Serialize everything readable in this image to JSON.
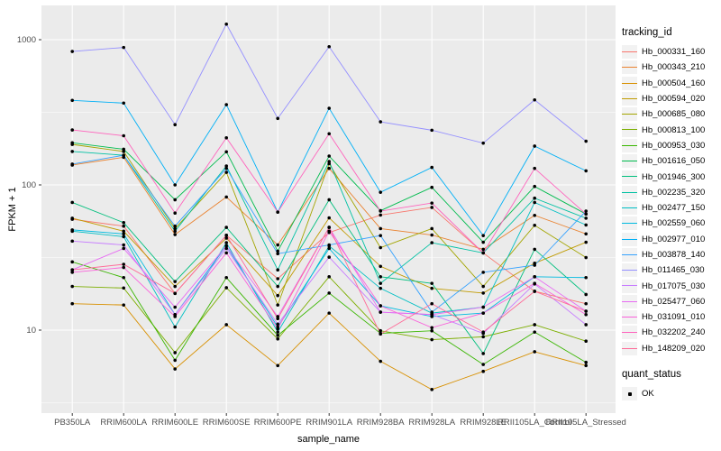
{
  "chart_data": {
    "type": "line",
    "xlabel": "sample_name",
    "ylabel": "FPKM + 1",
    "y_scale": "log10",
    "y_ticks": [
      10,
      100,
      1000
    ],
    "y_minor_ticks": [
      3.162,
      31.62,
      316.2
    ],
    "ylim_log10": [
      0.43,
      3.24
    ],
    "grid": true,
    "legend_position": "right",
    "point_color": "#000000",
    "categories": [
      "PB350LA",
      "RRIM600LA",
      "RRIM600LE",
      "RRIM600SE",
      "RRIM600PE",
      "RRIM901LA",
      "RRIM928BA",
      "RRIM928LA",
      "RRIM928LE",
      "RRII105LA_Control",
      "RRII105LA_Stressed"
    ],
    "series": [
      {
        "name": "Hb_000331_160",
        "color": "#F8766D",
        "values": [
          58,
          52,
          17.9,
          45,
          22.6,
          47,
          62,
          70,
          34,
          18.5,
          15.2
        ]
      },
      {
        "name": "Hb_000343_210",
        "color": "#EA8331",
        "values": [
          137,
          155,
          45.5,
          82.6,
          38.6,
          130,
          50,
          45.2,
          36,
          61.7,
          46
        ]
      },
      {
        "name": "Hb_000504_160",
        "color": "#D89000",
        "values": [
          15.2,
          14.9,
          5.4,
          10.9,
          5.7,
          13.1,
          6.1,
          3.9,
          5.2,
          7.1,
          5.7
        ]
      },
      {
        "name": "Hb_000594_020",
        "color": "#C09B00",
        "values": [
          59,
          48,
          20,
          43,
          17.3,
          59.3,
          27.5,
          19.4,
          18,
          28.9,
          40.3
        ]
      },
      {
        "name": "Hb_000685_080",
        "color": "#A3A500",
        "values": [
          190,
          170,
          50,
          122,
          14.9,
          140,
          37,
          50,
          20,
          52.7,
          31.6
        ]
      },
      {
        "name": "Hb_000813_100",
        "color": "#7CAE00",
        "values": [
          20,
          19.5,
          7.0,
          19.6,
          8.7,
          23.3,
          9.9,
          8.6,
          9.0,
          10.9,
          8.4
        ]
      },
      {
        "name": "Hb_000953_030",
        "color": "#39B600",
        "values": [
          29.5,
          23,
          6.2,
          23,
          9.2,
          18,
          9.5,
          9.9,
          5.8,
          9.7,
          6.0
        ]
      },
      {
        "name": "Hb_001616_050",
        "color": "#00BB4E",
        "values": [
          195,
          176,
          79,
          169,
          35,
          158,
          66.5,
          96.2,
          40.3,
          97.6,
          63
        ]
      },
      {
        "name": "Hb_001946_300",
        "color": "#00BF7D",
        "values": [
          75.7,
          55,
          21.6,
          51,
          20,
          79,
          23.3,
          21,
          6.9,
          36,
          17.6
        ]
      },
      {
        "name": "Hb_002235_320",
        "color": "#00C1A3",
        "values": [
          170,
          160,
          48,
          135,
          26,
          145,
          21,
          40,
          34,
          81,
          59
        ]
      },
      {
        "name": "Hb_002477_150",
        "color": "#00BFC4",
        "values": [
          48,
          44,
          10.5,
          40,
          9.7,
          38,
          19.4,
          13.1,
          14.4,
          75.7,
          53
        ]
      },
      {
        "name": "Hb_002559_060",
        "color": "#00BAE0",
        "values": [
          49,
          46,
          12.8,
          38,
          10.5,
          36.5,
          14.7,
          12.4,
          13.1,
          23.3,
          23
        ]
      },
      {
        "name": "Hb_002977_010",
        "color": "#00B0F6",
        "values": [
          382,
          366,
          100,
          357,
          65,
          337,
          89,
          132,
          44.8,
          185,
          125
        ]
      },
      {
        "name": "Hb_003878_140",
        "color": "#35A2FF",
        "values": [
          139,
          160,
          52,
          130,
          33.6,
          38.6,
          44.8,
          13.3,
          25,
          28,
          66
        ]
      },
      {
        "name": "Hb_011465_030",
        "color": "#9590FF",
        "values": [
          830,
          884,
          260,
          1280,
          287,
          895,
          272,
          238,
          194,
          385,
          200
        ]
      },
      {
        "name": "Hb_017075_030",
        "color": "#C77CFF",
        "values": [
          41,
          38.6,
          12.8,
          36.5,
          11,
          31.8,
          13.3,
          12.8,
          9.5,
          20.8,
          10.9
        ]
      },
      {
        "name": "Hb_025477_060",
        "color": "#E76BF3",
        "values": [
          26,
          36.5,
          14.4,
          38,
          12.4,
          51,
          13.3,
          12.8,
          14.4,
          23.3,
          13.5
        ]
      },
      {
        "name": "Hb_031091_010",
        "color": "#FA62DB",
        "values": [
          25,
          27,
          12.4,
          34,
          10.2,
          48,
          14.7,
          10.4,
          13.1,
          21,
          12.8
        ]
      },
      {
        "name": "Hb_032202_240",
        "color": "#FF62BC",
        "values": [
          239,
          218,
          64,
          211,
          65,
          225,
          66,
          75,
          34,
          130,
          63
        ]
      },
      {
        "name": "Hb_148209_020",
        "color": "#FF6A98",
        "values": [
          26,
          28.4,
          17.9,
          45,
          12,
          51,
          9.4,
          15.2,
          9.7,
          18.5,
          13.5
        ]
      }
    ]
  },
  "axes": {
    "y_title": "FPKM + 1",
    "x_title": "sample_name",
    "y_tick_labels": [
      "10",
      "100",
      "1000"
    ]
  },
  "legend": {
    "tracking_title": "tracking_id",
    "quant_title": "quant_status",
    "quant_ok_label": "OK"
  },
  "colors": {
    "panel_bg": "#EBEBEB",
    "grid": "#FFFFFF",
    "axis_text": "#4D4D4D",
    "tick_mark": "#333333",
    "legend_key_bg": "#F2F2F2",
    "point": "#000000"
  }
}
